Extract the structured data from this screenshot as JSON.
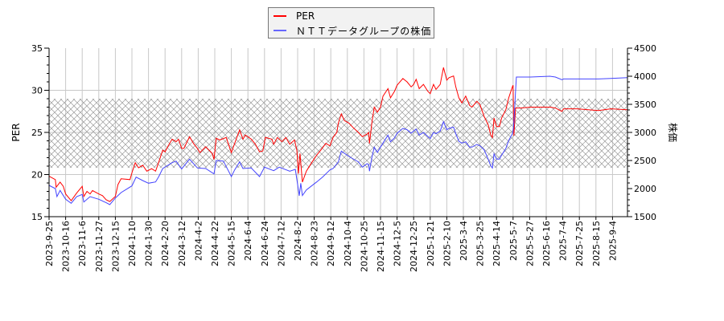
{
  "chart_data": {
    "type": "line",
    "title": "",
    "xlabel": "",
    "ylabel": "PER",
    "y2label": "株価",
    "ylim": [
      15,
      35
    ],
    "y2lim": [
      1500,
      4500
    ],
    "yticks": [
      15,
      20,
      25,
      30,
      35
    ],
    "y2ticks": [
      1500,
      2000,
      2500,
      3000,
      3500,
      4000,
      4500
    ],
    "grid": true,
    "legend_position": "top-center",
    "band": {
      "from": 20.8,
      "to": 29,
      "pattern": "crosshatch",
      "color": "#999999"
    },
    "xticks": [
      "2023-9-25",
      "2023-10-16",
      "2023-11-6",
      "2023-11-27",
      "2023-12-15",
      "2024-1-10",
      "2024-1-30",
      "2024-2-20",
      "2024-3-12",
      "2024-4-2",
      "2024-4-22",
      "2024-5-15",
      "2024-6-4",
      "2024-6-24",
      "2024-7-12",
      "2024-8-2",
      "2024-8-23",
      "2024-9-12",
      "2024-10-4",
      "2024-10-25",
      "2024-11-15",
      "2024-12-5",
      "2024-12-25",
      "2025-1-21",
      "2025-2-10",
      "2025-3-4",
      "2025-3-25",
      "2025-4-14",
      "2025-5-7",
      "2025-5-27",
      "2025-6-16",
      "2025-7-4",
      "2025-7-25",
      "2025-8-15",
      "2025-9-4"
    ],
    "series": [
      {
        "name": "PER",
        "axis": "left",
        "color": "#ff0000",
        "points": [
          [
            "2023-9-25",
            19.8
          ],
          [
            "2023-9-29",
            19.6
          ],
          [
            "2023-10-3",
            19.4
          ],
          [
            "2023-10-4",
            18.5
          ],
          [
            "2023-10-9",
            19.1
          ],
          [
            "2023-10-13",
            18.6
          ],
          [
            "2023-10-16",
            17.7
          ],
          [
            "2023-10-23",
            16.9
          ],
          [
            "2023-10-30",
            17.8
          ],
          [
            "2023-11-6",
            18.6
          ],
          [
            "2023-11-8",
            17.4
          ],
          [
            "2023-11-12",
            18.0
          ],
          [
            "2023-11-16",
            17.7
          ],
          [
            "2023-11-19",
            18.1
          ],
          [
            "2023-11-27",
            17.7
          ],
          [
            "2023-12-1",
            17.5
          ],
          [
            "2023-12-5",
            17.0
          ],
          [
            "2023-12-9",
            16.8
          ],
          [
            "2023-12-15",
            17.4
          ],
          [
            "2023-12-19",
            18.8
          ],
          [
            "2023-12-24",
            19.5
          ],
          [
            "2024-1-7",
            19.4
          ],
          [
            "2024-1-10",
            20.2
          ],
          [
            "2024-1-14",
            21.4
          ],
          [
            "2024-1-18",
            20.8
          ],
          [
            "2024-1-23",
            21.1
          ],
          [
            "2024-1-28",
            20.4
          ],
          [
            "2024-2-3",
            20.7
          ],
          [
            "2024-2-8",
            20.4
          ],
          [
            "2024-2-12",
            21.5
          ],
          [
            "2024-2-17",
            22.9
          ],
          [
            "2024-2-20",
            22.7
          ],
          [
            "2024-2-24",
            23.4
          ],
          [
            "2024-2-29",
            24.2
          ],
          [
            "2024-3-5",
            23.9
          ],
          [
            "2024-3-8",
            24.2
          ],
          [
            "2024-3-12",
            23.1
          ],
          [
            "2024-3-15",
            23.1
          ],
          [
            "2024-3-22",
            24.5
          ],
          [
            "2024-3-27",
            23.7
          ],
          [
            "2024-4-1",
            23.1
          ],
          [
            "2024-4-4",
            22.6
          ],
          [
            "2024-4-11",
            23.3
          ],
          [
            "2024-4-19",
            22.5
          ],
          [
            "2024-4-21",
            21.8
          ],
          [
            "2024-4-24",
            24.3
          ],
          [
            "2024-4-29",
            24.1
          ],
          [
            "2024-5-8",
            24.4
          ],
          [
            "2024-5-11",
            23.6
          ],
          [
            "2024-5-15",
            22.6
          ],
          [
            "2024-5-19",
            23.7
          ],
          [
            "2024-5-25",
            25.3
          ],
          [
            "2024-5-29",
            24.2
          ],
          [
            "2024-6-1",
            24.7
          ],
          [
            "2024-6-8",
            24.2
          ],
          [
            "2024-6-13",
            23.6
          ],
          [
            "2024-6-18",
            22.7
          ],
          [
            "2024-6-22",
            22.8
          ],
          [
            "2024-6-25",
            24.4
          ],
          [
            "2024-7-2",
            24.2
          ],
          [
            "2024-7-4",
            23.6
          ],
          [
            "2024-7-8",
            24.4
          ],
          [
            "2024-7-13",
            23.9
          ],
          [
            "2024-7-18",
            24.4
          ],
          [
            "2024-7-23",
            23.6
          ],
          [
            "2024-7-29",
            24.1
          ],
          [
            "2024-8-1",
            22.9
          ],
          [
            "2024-8-3",
            20.1
          ],
          [
            "2024-8-5",
            22.5
          ],
          [
            "2024-8-8",
            19.1
          ],
          [
            "2024-8-13",
            20.4
          ],
          [
            "2024-8-19",
            21.3
          ],
          [
            "2024-8-26",
            22.3
          ],
          [
            "2024-8-31",
            22.9
          ],
          [
            "2024-9-6",
            23.7
          ],
          [
            "2024-9-11",
            23.4
          ],
          [
            "2024-9-15",
            24.4
          ],
          [
            "2024-9-20",
            25.0
          ],
          [
            "2024-9-22",
            26.1
          ],
          [
            "2024-9-26",
            27.2
          ],
          [
            "2024-9-30",
            26.4
          ],
          [
            "2024-10-6",
            26.1
          ],
          [
            "2024-10-11",
            25.6
          ],
          [
            "2024-10-18",
            25.0
          ],
          [
            "2024-10-23",
            24.5
          ],
          [
            "2024-10-29",
            24.8
          ],
          [
            "2024-10-31",
            25.0
          ],
          [
            "2024-11-1",
            23.7
          ],
          [
            "2024-11-4",
            26.1
          ],
          [
            "2024-11-7",
            28.0
          ],
          [
            "2024-11-11",
            27.4
          ],
          [
            "2024-11-15",
            28.0
          ],
          [
            "2024-11-18",
            29.3
          ],
          [
            "2024-11-24",
            30.2
          ],
          [
            "2024-11-27",
            29.1
          ],
          [
            "2024-12-2",
            29.9
          ],
          [
            "2024-12-5",
            30.6
          ],
          [
            "2024-12-12",
            31.4
          ],
          [
            "2024-12-17",
            31.0
          ],
          [
            "2024-12-22",
            30.4
          ],
          [
            "2024-12-25",
            30.7
          ],
          [
            "2024-12-29",
            31.3
          ],
          [
            "2025-1-3",
            30.2
          ],
          [
            "2025-1-10",
            30.7
          ],
          [
            "2025-1-17",
            29.9
          ],
          [
            "2025-1-21",
            29.6
          ],
          [
            "2025-1-25",
            30.7
          ],
          [
            "2025-1-28",
            30.1
          ],
          [
            "2025-2-2",
            30.7
          ],
          [
            "2025-2-6",
            32.7
          ],
          [
            "2025-2-10",
            31.2
          ],
          [
            "2025-2-13",
            31.5
          ],
          [
            "2025-2-19",
            31.7
          ],
          [
            "2025-2-22",
            30.4
          ],
          [
            "2025-2-26",
            29.1
          ],
          [
            "2025-3-2",
            28.5
          ],
          [
            "2025-3-7",
            29.3
          ],
          [
            "2025-3-12",
            28.2
          ],
          [
            "2025-3-15",
            28.0
          ],
          [
            "2025-3-21",
            28.7
          ],
          [
            "2025-3-25",
            28.3
          ],
          [
            "2025-3-30",
            26.9
          ],
          [
            "2025-4-4",
            25.9
          ],
          [
            "2025-4-7",
            24.7
          ],
          [
            "2025-4-9",
            24.4
          ],
          [
            "2025-4-11",
            26.7
          ],
          [
            "2025-4-14",
            25.7
          ],
          [
            "2025-4-18",
            25.7
          ],
          [
            "2025-4-21",
            26.7
          ],
          [
            "2025-4-27",
            27.7
          ],
          [
            "2025-5-1",
            29.1
          ],
          [
            "2025-5-6",
            30.4
          ],
          [
            "2025-5-7",
            30.6
          ],
          [
            "2025-5-8",
            24.6
          ],
          [
            "2025-5-10",
            27.9
          ],
          [
            "2025-5-16",
            27.9
          ],
          [
            "2025-5-28",
            28.0
          ],
          [
            "2025-6-20",
            28.0
          ],
          [
            "2025-6-26",
            27.9
          ],
          [
            "2025-7-3",
            27.5
          ],
          [
            "2025-7-5",
            27.8
          ],
          [
            "2025-7-22",
            27.8
          ],
          [
            "2025-8-18",
            27.6
          ],
          [
            "2025-9-2",
            27.8
          ],
          [
            "2025-9-22",
            27.7
          ]
        ]
      },
      {
        "name": "ＮＴＴデータグループの株価",
        "axis": "right",
        "color": "#4444ff",
        "points": [
          [
            "2023-9-25",
            2057
          ],
          [
            "2023-10-3",
            2000
          ],
          [
            "2023-10-5",
            1857
          ],
          [
            "2023-10-9",
            1967
          ],
          [
            "2023-10-16",
            1810
          ],
          [
            "2023-10-23",
            1738
          ],
          [
            "2023-10-30",
            1857
          ],
          [
            "2023-11-6",
            1895
          ],
          [
            "2023-11-8",
            1762
          ],
          [
            "2023-11-16",
            1857
          ],
          [
            "2023-11-27",
            1810
          ],
          [
            "2023-12-5",
            1748
          ],
          [
            "2023-12-9",
            1714
          ],
          [
            "2023-12-15",
            1833
          ],
          [
            "2023-12-24",
            1929
          ],
          [
            "2024-1-10",
            2048
          ],
          [
            "2024-1-15",
            2205
          ],
          [
            "2024-1-23",
            2143
          ],
          [
            "2024-1-30",
            2095
          ],
          [
            "2024-2-8",
            2119
          ],
          [
            "2024-2-12",
            2214
          ],
          [
            "2024-2-17",
            2357
          ],
          [
            "2024-2-29",
            2462
          ],
          [
            "2024-3-5",
            2490
          ],
          [
            "2024-3-12",
            2348
          ],
          [
            "2024-3-22",
            2524
          ],
          [
            "2024-4-1",
            2367
          ],
          [
            "2024-4-11",
            2357
          ],
          [
            "2024-4-21",
            2262
          ],
          [
            "2024-4-24",
            2500
          ],
          [
            "2024-5-4",
            2490
          ],
          [
            "2024-5-15",
            2214
          ],
          [
            "2024-5-19",
            2333
          ],
          [
            "2024-5-25",
            2476
          ],
          [
            "2024-5-29",
            2357
          ],
          [
            "2024-6-8",
            2367
          ],
          [
            "2024-6-18",
            2214
          ],
          [
            "2024-6-24",
            2381
          ],
          [
            "2024-7-4",
            2319
          ],
          [
            "2024-7-10",
            2381
          ],
          [
            "2024-7-23",
            2310
          ],
          [
            "2024-7-30",
            2343
          ],
          [
            "2024-8-2",
            2071
          ],
          [
            "2024-8-4",
            1871
          ],
          [
            "2024-8-6",
            2095
          ],
          [
            "2024-8-8",
            1876
          ],
          [
            "2024-8-13",
            1976
          ],
          [
            "2024-8-26",
            2119
          ],
          [
            "2024-9-2",
            2205
          ],
          [
            "2024-9-11",
            2333
          ],
          [
            "2024-9-15",
            2357
          ],
          [
            "2024-9-22",
            2476
          ],
          [
            "2024-9-26",
            2667
          ],
          [
            "2024-10-6",
            2571
          ],
          [
            "2024-10-18",
            2476
          ],
          [
            "2024-10-23",
            2381
          ],
          [
            "2024-10-29",
            2443
          ],
          [
            "2024-10-31",
            2429
          ],
          [
            "2024-11-1",
            2310
          ],
          [
            "2024-11-4",
            2548
          ],
          [
            "2024-11-7",
            2738
          ],
          [
            "2024-11-11",
            2643
          ],
          [
            "2024-11-15",
            2738
          ],
          [
            "2024-11-19",
            2833
          ],
          [
            "2024-11-24",
            2952
          ],
          [
            "2024-11-27",
            2833
          ],
          [
            "2024-12-2",
            2905
          ],
          [
            "2024-12-5",
            2986
          ],
          [
            "2024-12-12",
            3071
          ],
          [
            "2024-12-17",
            3048
          ],
          [
            "2024-12-22",
            2986
          ],
          [
            "2024-12-25",
            3024
          ],
          [
            "2024-12-29",
            3062
          ],
          [
            "2025-1-3",
            2952
          ],
          [
            "2025-1-10",
            3000
          ],
          [
            "2025-1-17",
            2929
          ],
          [
            "2025-1-21",
            2890
          ],
          [
            "2025-1-25",
            3000
          ],
          [
            "2025-1-28",
            2976
          ],
          [
            "2025-2-2",
            3024
          ],
          [
            "2025-2-6",
            3190
          ],
          [
            "2025-2-10",
            3048
          ],
          [
            "2025-2-13",
            3071
          ],
          [
            "2025-2-19",
            3095
          ],
          [
            "2025-2-22",
            2976
          ],
          [
            "2025-2-26",
            2843
          ],
          [
            "2025-3-2",
            2810
          ],
          [
            "2025-3-7",
            2833
          ],
          [
            "2025-3-12",
            2738
          ],
          [
            "2025-3-15",
            2738
          ],
          [
            "2025-3-21",
            2786
          ],
          [
            "2025-3-25",
            2762
          ],
          [
            "2025-3-30",
            2690
          ],
          [
            "2025-4-4",
            2524
          ],
          [
            "2025-4-7",
            2405
          ],
          [
            "2025-4-9",
            2367
          ],
          [
            "2025-4-11",
            2619
          ],
          [
            "2025-4-14",
            2524
          ],
          [
            "2025-4-18",
            2524
          ],
          [
            "2025-4-21",
            2595
          ],
          [
            "2025-4-27",
            2714
          ],
          [
            "2025-5-1",
            2857
          ],
          [
            "2025-5-6",
            2976
          ],
          [
            "2025-5-7",
            3024
          ],
          [
            "2025-5-8",
            3167
          ],
          [
            "2025-5-10",
            3738
          ],
          [
            "2025-5-11",
            3986
          ],
          [
            "2025-5-16",
            3986
          ],
          [
            "2025-5-28",
            3986
          ],
          [
            "2025-6-20",
            4000
          ],
          [
            "2025-6-26",
            3986
          ],
          [
            "2025-7-3",
            3938
          ],
          [
            "2025-7-5",
            3952
          ],
          [
            "2025-7-22",
            3952
          ],
          [
            "2025-8-18",
            3952
          ],
          [
            "2025-9-2",
            3962
          ],
          [
            "2025-9-22",
            3976
          ]
        ]
      }
    ]
  }
}
